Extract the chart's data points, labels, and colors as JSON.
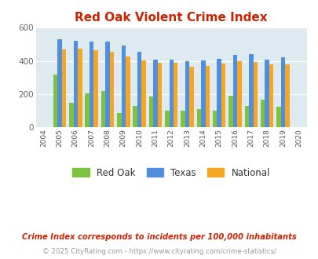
{
  "title": "Red Oak Violent Crime Index",
  "all_years": [
    2004,
    2005,
    2006,
    2007,
    2008,
    2009,
    2010,
    2011,
    2012,
    2013,
    2014,
    2015,
    2016,
    2017,
    2018,
    2019,
    2020
  ],
  "bar_years": [
    2005,
    2006,
    2007,
    2008,
    2009,
    2010,
    2011,
    2012,
    2013,
    2014,
    2015,
    2016,
    2017,
    2018,
    2019
  ],
  "red_oak": [
    320,
    150,
    205,
    220,
    85,
    130,
    185,
    100,
    100,
    110,
    100,
    190,
    130,
    165,
    125
  ],
  "texas": [
    530,
    520,
    515,
    515,
    495,
    455,
    410,
    410,
    400,
    405,
    415,
    435,
    440,
    410,
    420
  ],
  "national": [
    470,
    475,
    465,
    455,
    425,
    403,
    388,
    388,
    365,
    368,
    383,
    400,
    395,
    378,
    378
  ],
  "red_oak_color": "#7fc241",
  "texas_color": "#4f8fdb",
  "national_color": "#f5a623",
  "bg_color": "#deeaf0",
  "ylim": [
    0,
    600
  ],
  "yticks": [
    0,
    200,
    400,
    600
  ],
  "legend_labels": [
    "Red Oak",
    "Texas",
    "National"
  ],
  "footnote1": "Crime Index corresponds to incidents per 100,000 inhabitants",
  "footnote2": "© 2025 CityRating.com - https://www.cityrating.com/crime-statistics/",
  "title_color": "#cc2200",
  "footnote1_color": "#cc2200",
  "footnote2_color": "#999999",
  "bar_width": 0.27
}
